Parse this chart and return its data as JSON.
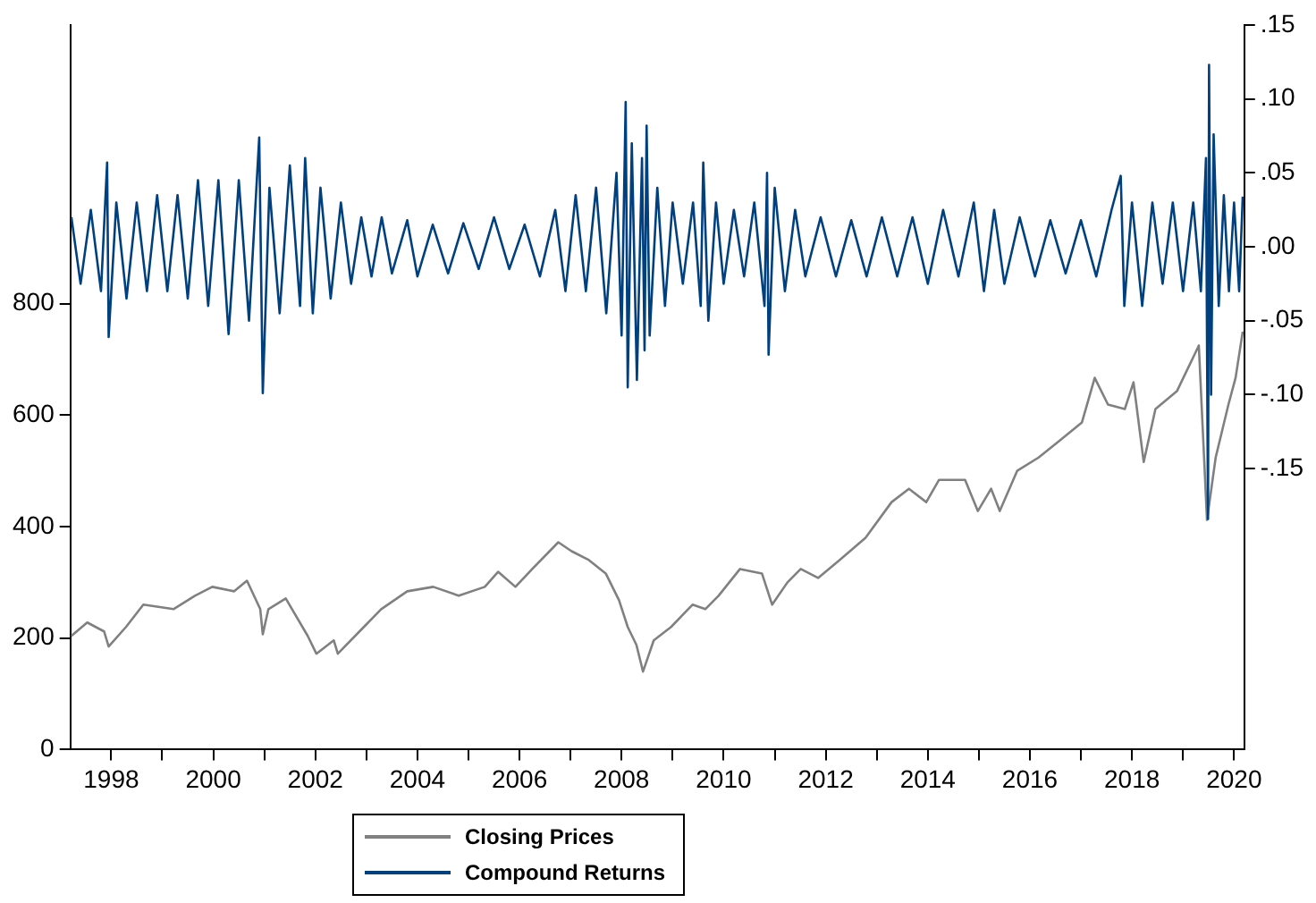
{
  "chart_data": {
    "type": "line",
    "xlim": [
      1997.2,
      2020.2
    ],
    "xticks": [
      1998,
      {
        "value": 1999,
        "label": null
      },
      2000,
      {
        "value": 2001,
        "label": null
      },
      2002,
      {
        "value": 2003,
        "label": null
      },
      2004,
      {
        "value": 2005,
        "label": null
      },
      2006,
      {
        "value": 2007,
        "label": null
      },
      2008,
      {
        "value": 2009,
        "label": null
      },
      2010,
      {
        "value": 2011,
        "label": null
      },
      2012,
      {
        "value": 2013,
        "label": null
      },
      2014,
      {
        "value": 2015,
        "label": null
      },
      2016,
      {
        "value": 2017,
        "label": null
      },
      2018,
      {
        "value": 2019,
        "label": null
      },
      2020
    ],
    "ylim": [
      0,
      1300
    ],
    "yticks": [
      0,
      200,
      400,
      600,
      800
    ],
    "y2lim": [
      -0.34,
      0.15
    ],
    "y2ticks": [
      {
        "value": 0.15,
        "label": ".15"
      },
      {
        "value": 0.1,
        "label": ".10"
      },
      {
        "value": 0.05,
        "label": ".05"
      },
      {
        "value": 0,
        "label": ".00"
      },
      {
        "value": -0.05,
        "label": "-.05"
      },
      {
        "value": -0.1,
        "label": "-.10"
      },
      {
        "value": -0.15,
        "label": "-.15"
      }
    ],
    "grid": false,
    "legend": "bottom",
    "marker": "none",
    "line_style": "solid",
    "series": [
      {
        "name": "Closing Prices",
        "color": "#808080",
        "x": [
          1997.22,
          1997.53,
          1997.86,
          1997.95,
          1998.29,
          1998.63,
          1999.22,
          1999.64,
          1999.98,
          2000.41,
          2000.66,
          2000.92,
          2000.97,
          2001.08,
          2001.42,
          2001.85,
          2002.02,
          2002.36,
          2002.44,
          2002.95,
          2003.29,
          2003.8,
          2004.31,
          2004.81,
          2005.32,
          2005.58,
          2005.92,
          2006.25,
          2006.76,
          2007.02,
          2007.36,
          2007.69,
          2007.95,
          2008.12,
          2008.29,
          2008.42,
          2008.63,
          2008.97,
          2009.39,
          2009.64,
          2009.9,
          2010.32,
          2010.75,
          2010.95,
          2011.25,
          2011.51,
          2011.85,
          2012.27,
          2012.78,
          2013.29,
          2013.63,
          2013.97,
          2014.22,
          2014.73,
          2014.98,
          2015.24,
          2015.41,
          2015.75,
          2016.17,
          2016.59,
          2017.02,
          2017.27,
          2017.53,
          2017.86,
          2018.03,
          2018.23,
          2018.46,
          2018.88,
          2019.31,
          2019.47,
          2019.64,
          2019.89,
          2020.03,
          2020.17
        ],
        "values": [
          204,
          228,
          212,
          185,
          220,
          260,
          252,
          276,
          292,
          284,
          303,
          252,
          207,
          252,
          271,
          204,
          172,
          196,
          172,
          220,
          252,
          284,
          292,
          276,
          292,
          319,
          292,
          324,
          372,
          356,
          340,
          316,
          268,
          220,
          188,
          140,
          196,
          220,
          260,
          252,
          276,
          324,
          316,
          260,
          300,
          324,
          308,
          340,
          380,
          444,
          468,
          444,
          484,
          484,
          428,
          468,
          428,
          500,
          524,
          555,
          587,
          667,
          619,
          611,
          659,
          516,
          611,
          643,
          725,
          412,
          524,
          619,
          667,
          750
        ]
      },
      {
        "name": "Compound Returns",
        "color": "#00407f",
        "axis": "y2",
        "x": [
          1997.22,
          1997.4,
          1997.6,
          1997.8,
          1997.92,
          1997.95,
          1998.1,
          1998.3,
          1998.5,
          1998.7,
          1998.9,
          1999.1,
          1999.3,
          1999.5,
          1999.7,
          1999.9,
          2000.1,
          2000.3,
          2000.5,
          2000.7,
          2000.9,
          2000.97,
          2001.1,
          2001.3,
          2001.5,
          2001.7,
          2001.8,
          2001.95,
          2002.1,
          2002.3,
          2002.5,
          2002.7,
          2002.9,
          2003.1,
          2003.3,
          2003.5,
          2003.8,
          2004.0,
          2004.3,
          2004.6,
          2004.9,
          2005.2,
          2005.5,
          2005.8,
          2006.1,
          2006.4,
          2006.7,
          2006.9,
          2007.1,
          2007.3,
          2007.5,
          2007.7,
          2007.9,
          2008.0,
          2008.08,
          2008.12,
          2008.2,
          2008.3,
          2008.4,
          2008.45,
          2008.49,
          2008.55,
          2008.7,
          2008.85,
          2009.0,
          2009.2,
          2009.4,
          2009.55,
          2009.6,
          2009.7,
          2009.85,
          2010.0,
          2010.2,
          2010.4,
          2010.6,
          2010.8,
          2010.85,
          2010.88,
          2011.0,
          2011.2,
          2011.4,
          2011.6,
          2011.9,
          2012.2,
          2012.5,
          2012.8,
          2013.1,
          2013.4,
          2013.7,
          2014.0,
          2014.3,
          2014.6,
          2014.9,
          2015.1,
          2015.3,
          2015.5,
          2015.8,
          2016.1,
          2016.4,
          2016.7,
          2017.0,
          2017.3,
          2017.6,
          2017.78,
          2017.85,
          2018.0,
          2018.2,
          2018.4,
          2018.6,
          2018.8,
          2019.0,
          2019.2,
          2019.35,
          2019.45,
          2019.49,
          2019.51,
          2019.55,
          2019.6,
          2019.7,
          2019.8,
          2019.9,
          2020.0,
          2020.1,
          2020.17
        ],
        "values": [
          0.02,
          -0.025,
          0.025,
          -0.03,
          0.057,
          -0.061,
          0.03,
          -0.035,
          0.03,
          -0.03,
          0.035,
          -0.03,
          0.035,
          -0.035,
          0.045,
          -0.04,
          0.045,
          -0.059,
          0.045,
          -0.05,
          0.074,
          -0.099,
          0.04,
          -0.045,
          0.055,
          -0.04,
          0.06,
          -0.045,
          0.04,
          -0.035,
          0.03,
          -0.025,
          0.02,
          -0.02,
          0.02,
          -0.018,
          0.018,
          -0.02,
          0.015,
          -0.018,
          0.016,
          -0.015,
          0.02,
          -0.015,
          0.015,
          -0.02,
          0.025,
          -0.03,
          0.035,
          -0.03,
          0.04,
          -0.045,
          0.05,
          -0.06,
          0.098,
          -0.095,
          0.07,
          -0.09,
          0.06,
          -0.07,
          0.082,
          -0.06,
          0.04,
          -0.04,
          0.03,
          -0.025,
          0.03,
          -0.04,
          0.057,
          -0.05,
          0.03,
          -0.025,
          0.025,
          -0.02,
          0.03,
          -0.04,
          0.05,
          -0.073,
          0.04,
          -0.03,
          0.025,
          -0.02,
          0.02,
          -0.02,
          0.018,
          -0.02,
          0.02,
          -0.02,
          0.02,
          -0.025,
          0.025,
          -0.02,
          0.03,
          -0.03,
          0.025,
          -0.025,
          0.02,
          -0.02,
          0.018,
          -0.018,
          0.018,
          -0.02,
          0.025,
          0.048,
          -0.04,
          0.03,
          -0.04,
          0.03,
          -0.025,
          0.03,
          -0.03,
          0.03,
          -0.03,
          0.06,
          -0.184,
          0.123,
          -0.1,
          0.076,
          -0.04,
          0.035,
          -0.03,
          0.03,
          -0.03,
          0.034
        ]
      }
    ]
  }
}
